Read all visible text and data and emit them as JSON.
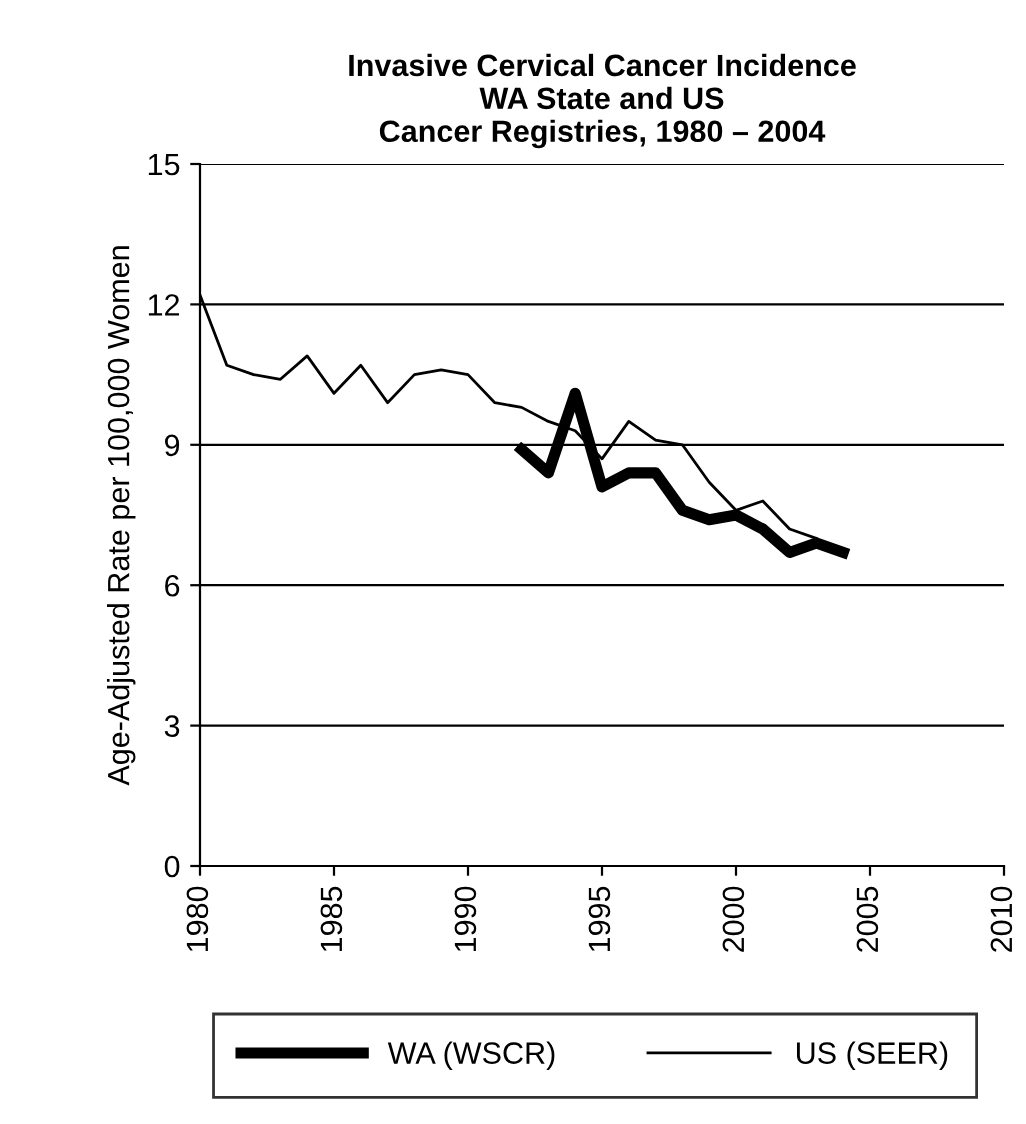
{
  "chart_data": {
    "type": "line",
    "title": "Invasive Cervical Cancer Incidence\nWA State and US\nCancer Registries, 1980 – 2004",
    "ylabel": "Age-Adjusted Rate per 100,000 Women",
    "series": [
      {
        "name": "WA (WSCR)",
        "color": "#000000",
        "x": [
          1992,
          1993,
          1994,
          1995,
          1996,
          1997,
          1998,
          1999,
          2000,
          2001,
          2002,
          2003,
          2004
        ],
        "values": [
          8.9,
          8.4,
          10.1,
          8.1,
          8.4,
          8.4,
          7.6,
          7.4,
          7.5,
          7.2,
          6.7,
          6.9,
          6.7
        ]
      },
      {
        "name": "US (SEER)",
        "color": "#000000",
        "x": [
          1980,
          1981,
          1982,
          1983,
          1984,
          1985,
          1986,
          1987,
          1988,
          1989,
          1990,
          1991,
          1992,
          1993,
          1994,
          1995,
          1996,
          1997,
          1998,
          1999,
          2000,
          2001,
          2002,
          2003
        ],
        "values": [
          12.2,
          10.7,
          10.5,
          10.4,
          10.9,
          10.1,
          10.7,
          9.9,
          10.5,
          10.6,
          10.5,
          9.9,
          9.8,
          9.5,
          9.3,
          8.7,
          9.5,
          9.1,
          9.0,
          8.2,
          7.6,
          7.8,
          7.2,
          7.0
        ]
      }
    ],
    "xlim": [
      1980,
      2010
    ],
    "xticks": [
      1980,
      1985,
      1990,
      1995,
      2000,
      2005,
      2010
    ],
    "ylim": [
      0,
      15
    ],
    "yticks": [
      0,
      3,
      6,
      9,
      12,
      15
    ],
    "grid": "y",
    "legend": "bottom"
  }
}
